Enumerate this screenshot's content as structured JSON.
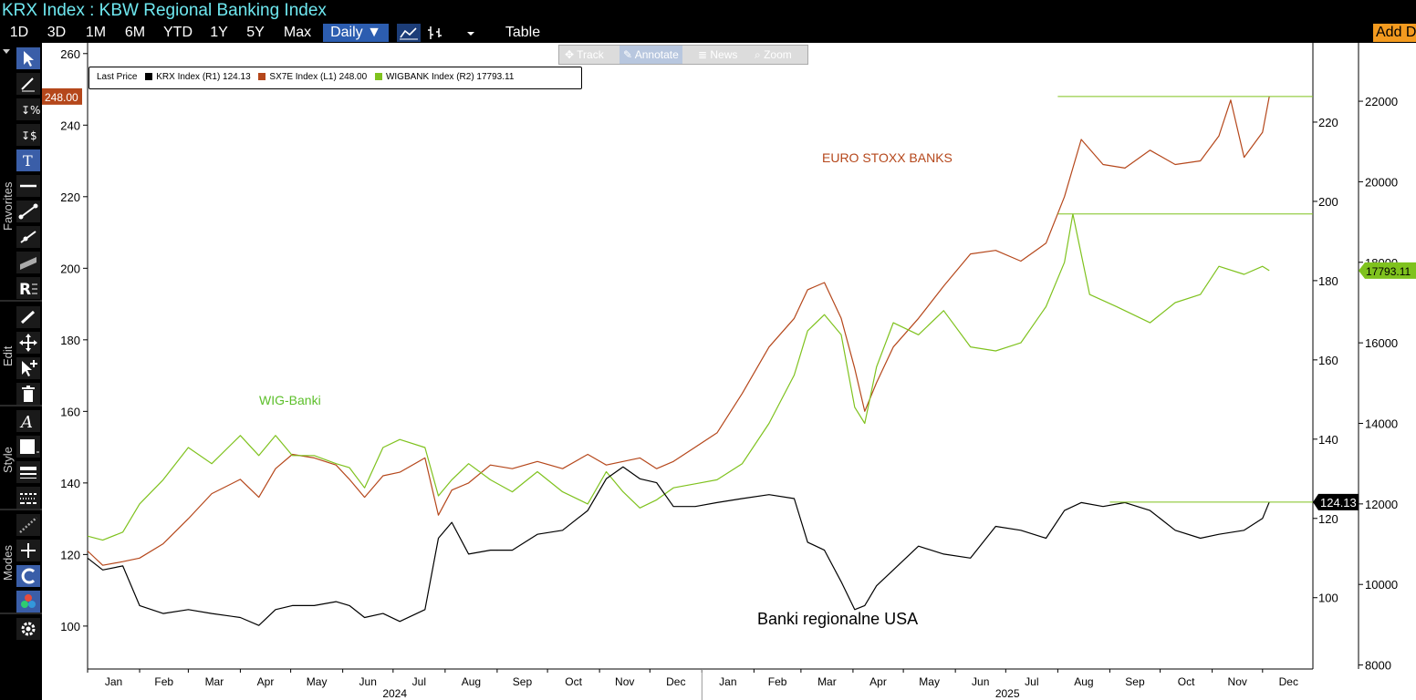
{
  "header": {
    "title": "KRX Index : KBW Regional Banking Index"
  },
  "toolbar": {
    "periods": [
      "1D",
      "3D",
      "1M",
      "6M",
      "YTD",
      "1Y",
      "5Y",
      "Max"
    ],
    "frequency": "Daily ▼",
    "table_label": "Table",
    "add_label": "Add D"
  },
  "sidebar": {
    "sections": [
      "Favorites",
      "Edit",
      "Style",
      "Modes"
    ]
  },
  "chart_toolbox": {
    "items": [
      "Track",
      "Annotate",
      "News",
      "Zoom"
    ]
  },
  "legend": {
    "title": "Last Price",
    "entries": [
      {
        "label": "KRX Index  (R1)  124.13",
        "color": "#000000"
      },
      {
        "label": "SX7E Index  (L1)  248.00",
        "color": "#b5471b"
      },
      {
        "label": "WIGBANK Index  (R2)  17793.11",
        "color": "#7fc21e"
      }
    ]
  },
  "chart_data": {
    "type": "line",
    "date_range": [
      "2024-01-01",
      "2025-12-31"
    ],
    "x_ticks": [
      "Jan",
      "Feb",
      "Mar",
      "Apr",
      "May",
      "Jun",
      "Jul",
      "Aug",
      "Sep",
      "Oct",
      "Nov",
      "Dec",
      "Jan",
      "Feb",
      "Mar",
      "Apr",
      "May",
      "Jun",
      "Jul",
      "Aug",
      "Sep",
      "Oct",
      "Nov",
      "Dec"
    ],
    "year_labels": [
      "2024",
      "2025"
    ],
    "axes": {
      "left": {
        "ticks": [
          100,
          120,
          140,
          160,
          180,
          200,
          220,
          240,
          260
        ],
        "ylim": [
          88,
          263
        ]
      },
      "right1": {
        "ticks": [
          100,
          120,
          140,
          160,
          180,
          200,
          220
        ],
        "ylim": [
          82,
          240
        ]
      },
      "right2": {
        "ticks": [
          8000,
          10000,
          12000,
          14000,
          16000,
          18000,
          20000,
          22000
        ],
        "ylim": [
          7900,
          23450
        ]
      }
    },
    "series": [
      {
        "name": "SX7E Index",
        "axis": "left",
        "color": "#b5471b",
        "dates": [
          "2024-01-01",
          "2024-01-10",
          "2024-01-22",
          "2024-02-01",
          "2024-02-15",
          "2024-03-01",
          "2024-03-15",
          "2024-04-01",
          "2024-04-12",
          "2024-04-22",
          "2024-05-02",
          "2024-05-15",
          "2024-05-28",
          "2024-06-05",
          "2024-06-14",
          "2024-06-25",
          "2024-07-05",
          "2024-07-20",
          "2024-07-28",
          "2024-08-05",
          "2024-08-15",
          "2024-08-28",
          "2024-09-10",
          "2024-09-25",
          "2024-10-10",
          "2024-10-25",
          "2024-11-05",
          "2024-11-15",
          "2024-11-25",
          "2024-12-05",
          "2024-12-15",
          "2024-12-28",
          "2025-01-10",
          "2025-01-25",
          "2025-02-10",
          "2025-02-25",
          "2025-03-05",
          "2025-03-15",
          "2025-03-25",
          "2025-04-02",
          "2025-04-08",
          "2025-04-15",
          "2025-04-25",
          "2025-05-10",
          "2025-05-25",
          "2025-06-10",
          "2025-06-25",
          "2025-07-10",
          "2025-07-25",
          "2025-08-05",
          "2025-08-15",
          "2025-08-28",
          "2025-09-10",
          "2025-09-25",
          "2025-10-10",
          "2025-10-25",
          "2025-11-05",
          "2025-11-12",
          "2025-11-20",
          "2025-12-01",
          "2025-12-05"
        ],
        "values": [
          121,
          117,
          118,
          119,
          123,
          130,
          137,
          141,
          136,
          144,
          148,
          147,
          145,
          141,
          136,
          142,
          143,
          147,
          131,
          138,
          140,
          145,
          144,
          146,
          144,
          148,
          145,
          146,
          147,
          144,
          146,
          150,
          154,
          165,
          178,
          186,
          194,
          196,
          186,
          172,
          160,
          168,
          178,
          186,
          195,
          204,
          205,
          202,
          207,
          220,
          236,
          229,
          228,
          233,
          229,
          230,
          237,
          247,
          231,
          238,
          248
        ]
      },
      {
        "name": "WIGBANK Index",
        "axis": "right2",
        "color": "#7fc21e",
        "dates": [
          "2024-01-01",
          "2024-01-10",
          "2024-01-22",
          "2024-02-01",
          "2024-02-15",
          "2024-03-01",
          "2024-03-15",
          "2024-04-01",
          "2024-04-12",
          "2024-04-22",
          "2024-05-02",
          "2024-05-15",
          "2024-05-28",
          "2024-06-05",
          "2024-06-14",
          "2024-06-25",
          "2024-07-05",
          "2024-07-20",
          "2024-07-28",
          "2024-08-05",
          "2024-08-15",
          "2024-08-28",
          "2024-09-10",
          "2024-09-25",
          "2024-10-10",
          "2024-10-25",
          "2024-11-05",
          "2024-11-15",
          "2024-11-25",
          "2024-12-05",
          "2024-12-15",
          "2024-12-28",
          "2025-01-10",
          "2025-01-25",
          "2025-02-10",
          "2025-02-25",
          "2025-03-05",
          "2025-03-15",
          "2025-03-25",
          "2025-04-02",
          "2025-04-08",
          "2025-04-15",
          "2025-04-25",
          "2025-05-10",
          "2025-05-25",
          "2025-06-10",
          "2025-06-25",
          "2025-07-10",
          "2025-07-25",
          "2025-08-05",
          "2025-08-10",
          "2025-08-20",
          "2025-09-05",
          "2025-09-25",
          "2025-10-10",
          "2025-10-25",
          "2025-11-05",
          "2025-11-20",
          "2025-12-01",
          "2025-12-05"
        ],
        "values": [
          11200,
          11100,
          11300,
          12000,
          12600,
          13400,
          13000,
          13700,
          13200,
          13700,
          13200,
          13200,
          13000,
          12900,
          12400,
          13400,
          13600,
          13400,
          12200,
          12600,
          13000,
          12600,
          12300,
          12800,
          12300,
          12000,
          12800,
          12300,
          11900,
          12100,
          12400,
          12500,
          12600,
          13000,
          14000,
          15200,
          16300,
          16700,
          16200,
          14400,
          14000,
          15400,
          16500,
          16200,
          16800,
          15900,
          15800,
          16000,
          16900,
          18000,
          19200,
          17200,
          16900,
          16500,
          17000,
          17200,
          17900,
          17700,
          17900,
          17793.11
        ]
      },
      {
        "name": "KRX Index",
        "axis": "right1",
        "color": "#000000",
        "dates": [
          "2024-01-01",
          "2024-01-10",
          "2024-01-22",
          "2024-02-01",
          "2024-02-15",
          "2024-03-01",
          "2024-03-15",
          "2024-04-01",
          "2024-04-12",
          "2024-04-22",
          "2024-05-02",
          "2024-05-15",
          "2024-05-28",
          "2024-06-05",
          "2024-06-14",
          "2024-06-25",
          "2024-07-05",
          "2024-07-20",
          "2024-07-28",
          "2024-08-05",
          "2024-08-15",
          "2024-08-28",
          "2024-09-10",
          "2024-09-25",
          "2024-10-10",
          "2024-10-25",
          "2024-11-05",
          "2024-11-15",
          "2024-11-25",
          "2024-12-05",
          "2024-12-15",
          "2024-12-28",
          "2025-01-10",
          "2025-01-25",
          "2025-02-10",
          "2025-02-25",
          "2025-03-05",
          "2025-03-15",
          "2025-03-25",
          "2025-04-02",
          "2025-04-08",
          "2025-04-15",
          "2025-04-25",
          "2025-05-10",
          "2025-05-25",
          "2025-06-10",
          "2025-06-25",
          "2025-07-10",
          "2025-07-25",
          "2025-08-05",
          "2025-08-15",
          "2025-08-28",
          "2025-09-10",
          "2025-09-25",
          "2025-10-10",
          "2025-10-25",
          "2025-11-05",
          "2025-11-20",
          "2025-12-01",
          "2025-12-05"
        ],
        "values": [
          110,
          107,
          108,
          98,
          96,
          97,
          96,
          95,
          93,
          97,
          98,
          98,
          99,
          98,
          95,
          96,
          94,
          97,
          115,
          119,
          111,
          112,
          112,
          116,
          117,
          122,
          130,
          133,
          130,
          129,
          123,
          123,
          124,
          125,
          126,
          125,
          114,
          112,
          104,
          97,
          98,
          103,
          107,
          113,
          111,
          110,
          118,
          117,
          115,
          122,
          124,
          123,
          124,
          122,
          117,
          115,
          116,
          117,
          120,
          124.13
        ]
      }
    ],
    "annotations": [
      {
        "text": "EURO STOXX BANKS",
        "color": "#b5471b"
      },
      {
        "text": "WIG-Banki",
        "color": "#5cbf2a"
      },
      {
        "text": "Banki regionalne USA",
        "color": "#000000"
      }
    ],
    "last_values": {
      "left": "248.00",
      "right1": "124.13",
      "right2": "17793.11"
    },
    "grid": false,
    "legend_position": "top-left"
  }
}
